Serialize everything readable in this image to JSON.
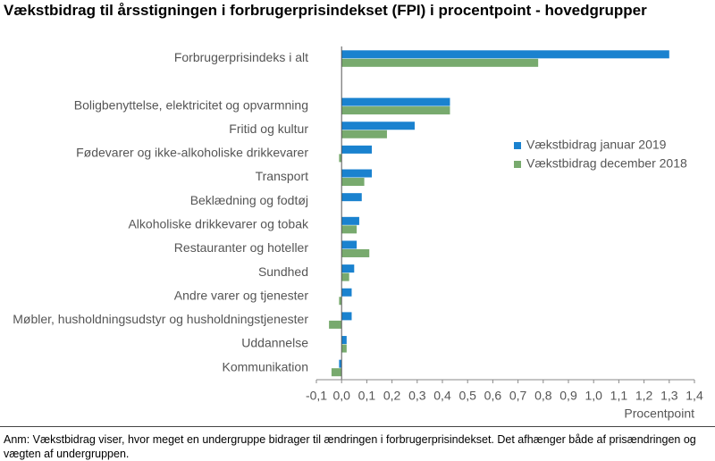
{
  "chart_data": {
    "type": "hbar",
    "title": "Vækstbidrag til årsstigningen i forbrugerprisindekset (FPI) i procentpoint - hovedgrupper",
    "x_label": "Procentpoint",
    "note": "Anm: Vækstbidrag viser, hvor meget en undergruppe bidrager til ændringen i forbrugerprisindekset. Det afhænger både af prisændringen og vægten af undergruppen.",
    "categories": [
      "Forbrugerprisindeks i alt",
      null,
      "Boligbenyttelse, elektricitet og opvarmning",
      "Fritid og kultur",
      "Fødevarer og ikke-alkoholiske drikkevarer",
      "Transport",
      "Beklædning og fodtøj",
      "Alkoholiske drikkevarer og tobak",
      "Restauranter og hoteller",
      "Sundhed",
      "Andre varer og tjenester",
      "Møbler, husholdningsudstyr og husholdningstjenester",
      "Uddannelse",
      "Kommunikation"
    ],
    "series": [
      {
        "name": "Vækstbidrag januar 2019",
        "color": "#1a82cf",
        "values": [
          1.3,
          null,
          0.43,
          0.29,
          0.12,
          0.12,
          0.08,
          0.07,
          0.06,
          0.05,
          0.04,
          0.04,
          0.02,
          -0.01
        ]
      },
      {
        "name": "Vækstbidrag december 2018",
        "color": "#78aa6e",
        "values": [
          0.78,
          null,
          0.43,
          0.18,
          -0.01,
          0.09,
          0,
          0.06,
          0.11,
          0.03,
          -0.01,
          -0.05,
          0.02,
          -0.04
        ]
      }
    ],
    "xlim": [
      -0.1,
      1.4
    ],
    "xticks": [
      {
        "value": -0.1,
        "label": "-0,1"
      },
      {
        "value": 0,
        "label": "0,0"
      },
      {
        "value": 0.1,
        "label": "0,1"
      },
      {
        "value": 0.2,
        "label": "0,2"
      },
      {
        "value": 0.3,
        "label": "0,3"
      },
      {
        "value": 0.4,
        "label": "0,4"
      },
      {
        "value": 0.5,
        "label": "0,5"
      },
      {
        "value": 0.6,
        "label": "0,6"
      },
      {
        "value": 0.7,
        "label": "0,7"
      },
      {
        "value": 0.8,
        "label": "0,8"
      },
      {
        "value": 0.9,
        "label": "0,9"
      },
      {
        "value": 1.0,
        "label": "1,0"
      },
      {
        "value": 1.1,
        "label": "1,1"
      },
      {
        "value": 1.2,
        "label": "1,2"
      },
      {
        "value": 1.3,
        "label": "1,3"
      },
      {
        "value": 1.4,
        "label": "1,4"
      }
    ],
    "grid": false,
    "legend": "right"
  }
}
